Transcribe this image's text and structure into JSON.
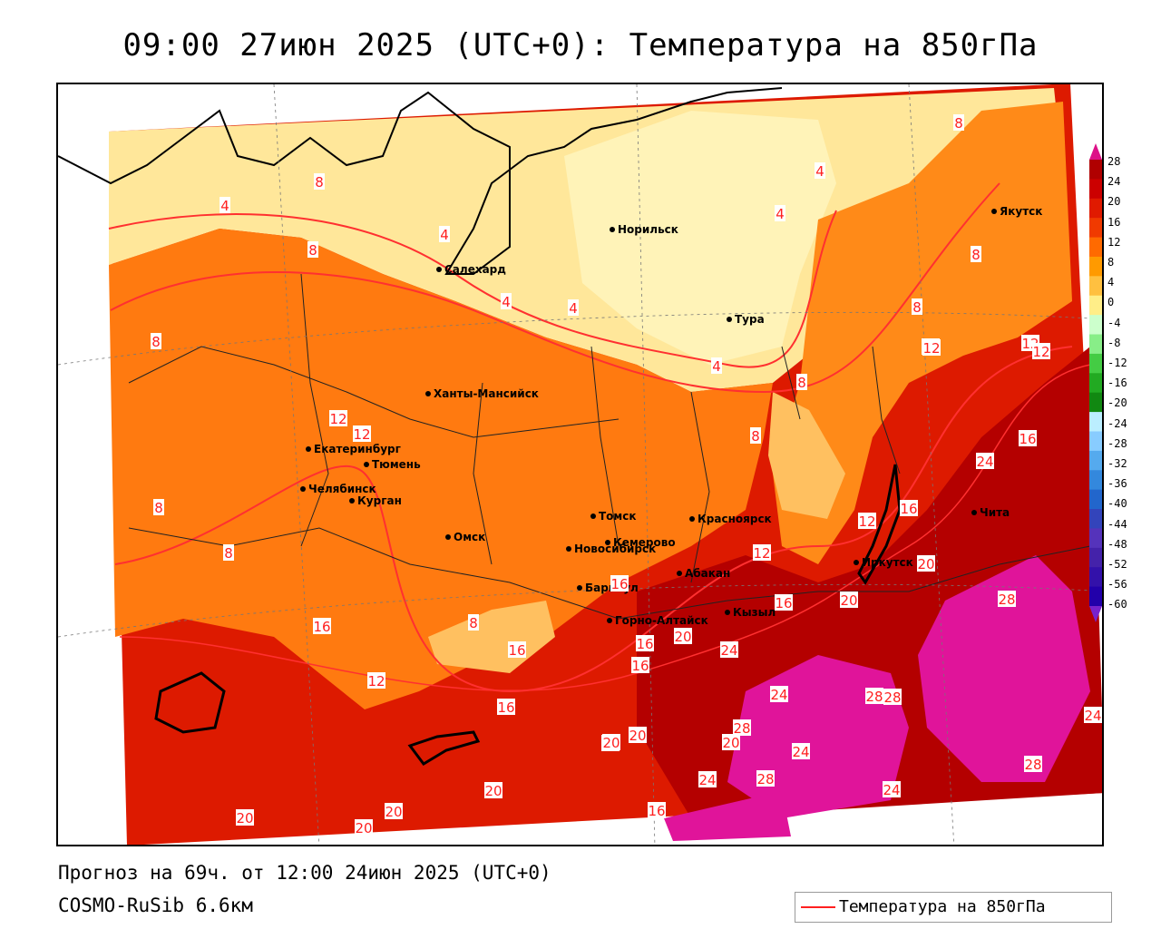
{
  "header": {
    "title": "09:00 27июн 2025 (UTC+0): Температура на 850гПа"
  },
  "footer": {
    "forecast": "Прогноз на 69ч. от 12:00 24июн 2025 (UTC+0)",
    "model": "COSMO-RuSib 6.6км"
  },
  "legend": {
    "label": "Температура на 850гПа",
    "line_color": "#ff2020"
  },
  "colorbar": {
    "labels": [
      "28",
      "24",
      "20",
      "16",
      "12",
      "8",
      "4",
      "0",
      "-4",
      "-8",
      "-12",
      "-16",
      "-20",
      "-24",
      "-28",
      "-32",
      "-36",
      "-40",
      "-44",
      "-48",
      "-52",
      "-56",
      "-60"
    ],
    "colors": [
      "#b00000",
      "#cc0000",
      "#e01a00",
      "#f03a00",
      "#ff6a00",
      "#ff9a00",
      "#ffc040",
      "#ffee88",
      "#ccffcc",
      "#88ee88",
      "#44cc44",
      "#22aa22",
      "#118811",
      "#bbeeff",
      "#88ccff",
      "#55aaee",
      "#3388dd",
      "#2266cc",
      "#3344bb",
      "#5533bb",
      "#4422aa",
      "#3311aa",
      "#2200aa"
    ],
    "top_color": "#dd1188",
    "bottom_color": "#7722cc"
  },
  "cities": [
    {
      "name": "Норильск"
    },
    {
      "name": "Якутск"
    },
    {
      "name": "Салехард"
    },
    {
      "name": "Тура"
    },
    {
      "name": "Ханты-Мансийск"
    },
    {
      "name": "Екатеринбург"
    },
    {
      "name": "Тюмень"
    },
    {
      "name": "Челябинск"
    },
    {
      "name": "Курган"
    },
    {
      "name": "Омск"
    },
    {
      "name": "Новосибирск"
    },
    {
      "name": "Томск"
    },
    {
      "name": "Кемерово"
    },
    {
      "name": "Красноярск"
    },
    {
      "name": "Барнаул"
    },
    {
      "name": "Абакан"
    },
    {
      "name": "Горно-Алтайск"
    },
    {
      "name": "Кызыл"
    },
    {
      "name": "Иркутск"
    },
    {
      "name": "Чита"
    }
  ],
  "contour_labels": [
    "8",
    "4",
    "4",
    "8",
    "4",
    "4",
    "8",
    "4",
    "8",
    "8",
    "4",
    "4",
    "8",
    "8",
    "8",
    "12",
    "12",
    "16",
    "12",
    "12",
    "8",
    "8",
    "12",
    "12",
    "12",
    "12",
    "16",
    "24",
    "20",
    "20",
    "16",
    "16",
    "16",
    "12",
    "16",
    "20",
    "16",
    "16",
    "20",
    "20",
    "24",
    "24",
    "24",
    "28",
    "28",
    "20",
    "20",
    "28",
    "28",
    "24",
    "24",
    "20",
    "20",
    "20",
    "20",
    "28",
    "28",
    "24",
    "16",
    "8",
    "16"
  ]
}
